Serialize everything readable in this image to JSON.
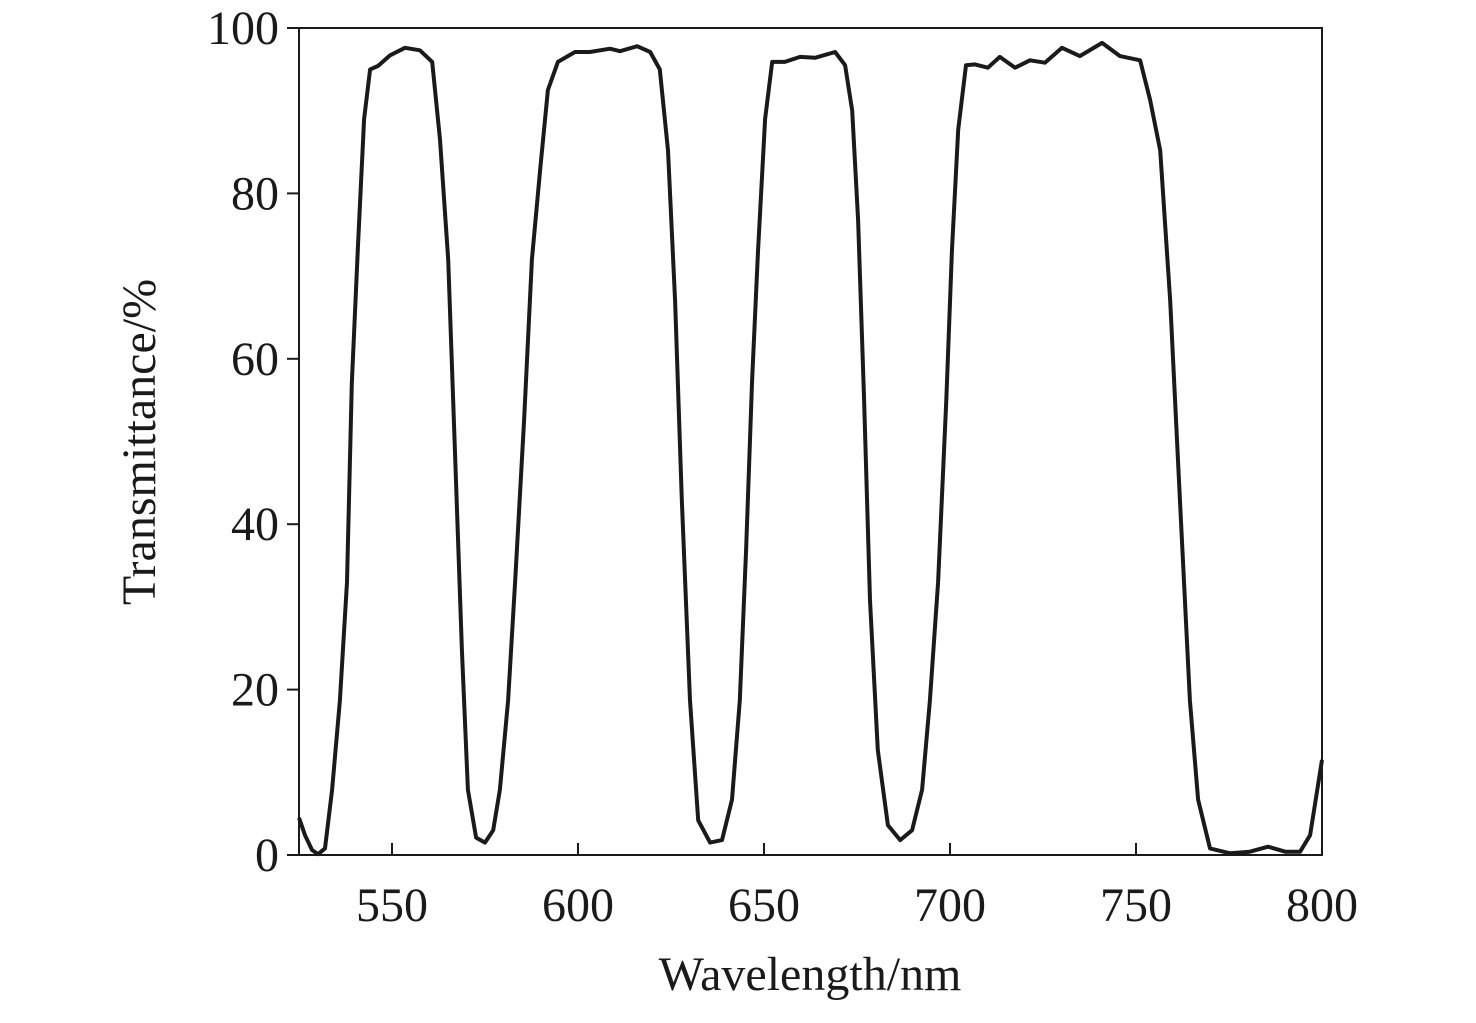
{
  "chart_data": {
    "type": "line",
    "x_label": "Wavelength/nm",
    "y_label": "Transmittance/%",
    "xlim": [
      525,
      800
    ],
    "xticks": [
      550,
      600,
      650,
      700,
      750,
      800
    ],
    "ylim": [
      0,
      100
    ],
    "yticks": [
      0,
      20,
      40,
      60,
      80,
      100
    ],
    "color": "#1a1a1a",
    "x": [
      525,
      526.6,
      528.5,
      530.1,
      532,
      533.9,
      536,
      537.9,
      539.2,
      540.9,
      542.5,
      544.1,
      546.2,
      549.5,
      553.5,
      557.5,
      560.8,
      562.9,
      565.1,
      566.9,
      568.8,
      570.4,
      572.6,
      575,
      577.2,
      579,
      581.2,
      583.1,
      585.5,
      587.6,
      589.8,
      591.9,
      594.6,
      599.2,
      603.2,
      608.6,
      611.3,
      615.9,
      619.4,
      622,
      624.2,
      626.1,
      627.9,
      630.1,
      632.3,
      635.5,
      638.7,
      641.4,
      643.5,
      645.2,
      646.8,
      648.4,
      650.3,
      652.2,
      655.6,
      659.7,
      663.7,
      669.1,
      671.8,
      673.7,
      675.3,
      676.9,
      678.5,
      680.6,
      683.3,
      686.6,
      689.8,
      692.5,
      694.6,
      696.8,
      699,
      700.5,
      702.2,
      704.3,
      706.7,
      710.2,
      713.4,
      717.5,
      721.5,
      725.5,
      730.1,
      734.9,
      740.9,
      745.7,
      751.1,
      753.8,
      756.5,
      759.2,
      761.8,
      764.5,
      766.7,
      769.9,
      775.3,
      780.6,
      785.5,
      790.1,
      794.1,
      796.8,
      800
    ],
    "values": [
      4.5,
      2.4,
      0.6,
      0.1,
      0.8,
      7.9,
      18.7,
      33,
      57,
      74,
      89,
      95,
      95.4,
      96.7,
      97.6,
      97.3,
      95.9,
      86.5,
      72,
      49,
      24.8,
      7.9,
      2.1,
      1.5,
      3,
      7.9,
      18.7,
      33,
      52.6,
      72,
      82.8,
      92.5,
      95.9,
      97.1,
      97.1,
      97.5,
      97.2,
      97.8,
      97.1,
      95,
      85.2,
      67,
      43,
      18.7,
      4.2,
      1.5,
      1.8,
      6.7,
      18.7,
      36.9,
      57.4,
      73,
      89,
      95.9,
      95.9,
      96.5,
      96.4,
      97.1,
      95.5,
      90,
      76.8,
      55,
      30.8,
      12.7,
      3.6,
      1.8,
      3,
      7.9,
      18.7,
      33,
      55,
      73,
      87.7,
      95.5,
      95.6,
      95.2,
      96.5,
      95.2,
      96.1,
      95.8,
      97.6,
      96.6,
      98.2,
      96.6,
      96.1,
      91.3,
      85.2,
      67,
      43,
      18.7,
      6.7,
      0.8,
      0.2,
      0.4,
      1,
      0.4,
      0.4,
      2.4,
      11.5
    ]
  }
}
